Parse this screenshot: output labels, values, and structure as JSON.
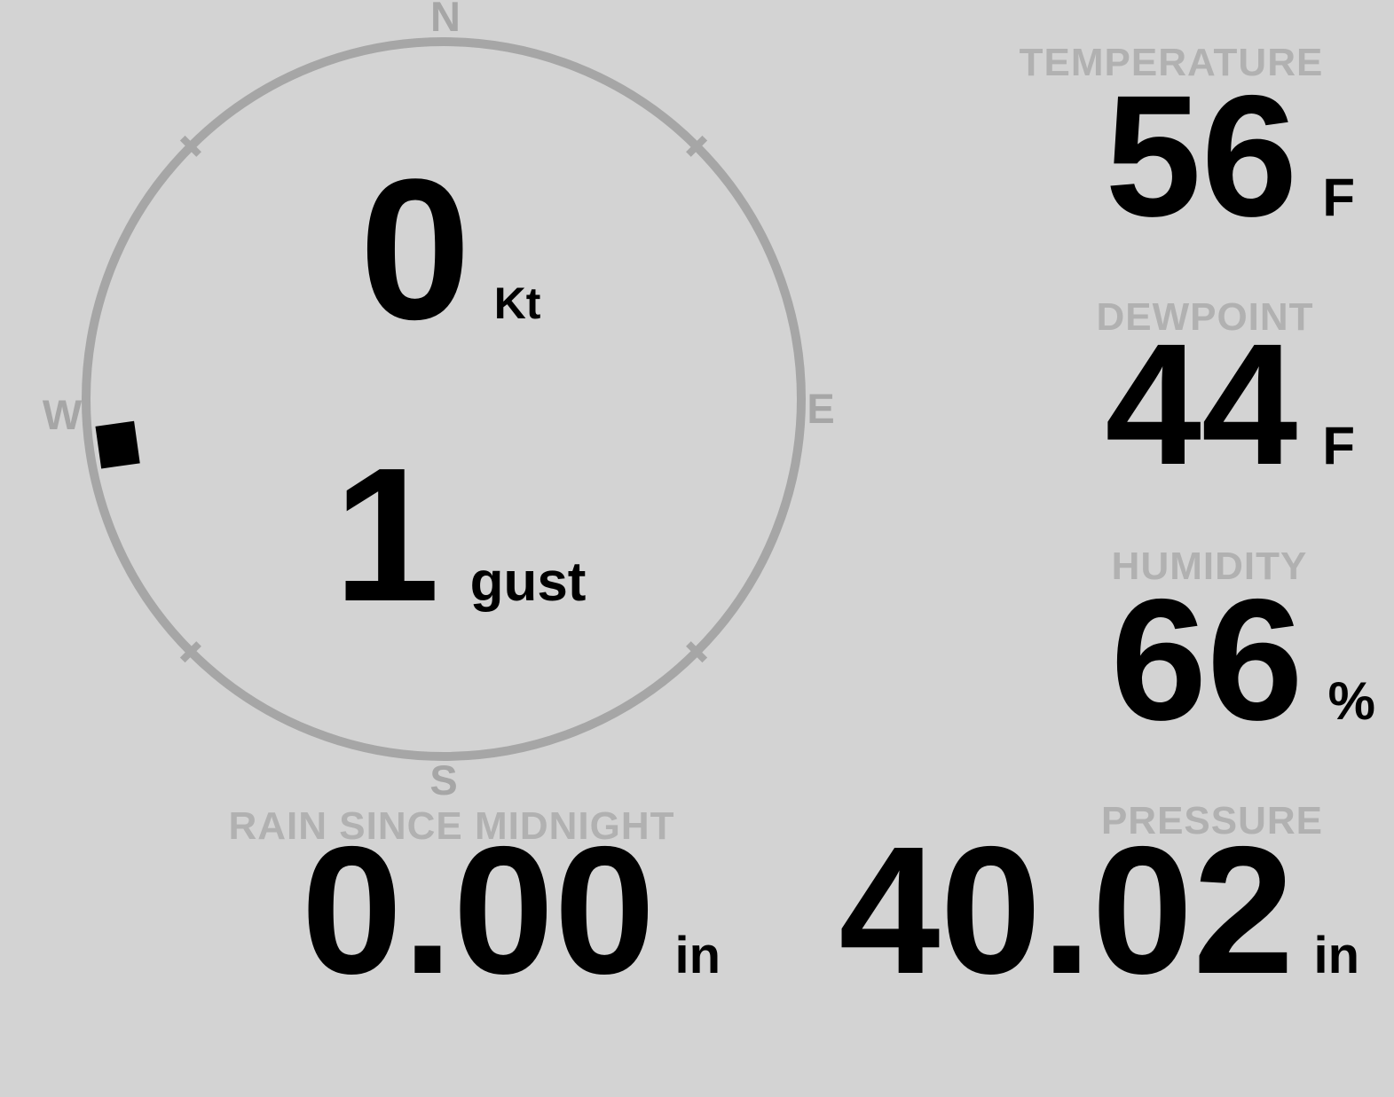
{
  "colors": {
    "background": "#d3d3d3",
    "label": "#b1b1b1",
    "compass": "#a6a6a6",
    "value": "#000000"
  },
  "compass": {
    "cardinals": {
      "north": "N",
      "east": "E",
      "south": "S",
      "west": "W"
    },
    "wind_speed": {
      "value": "0",
      "unit": "Kt"
    },
    "wind_gust": {
      "value": "1",
      "unit": "gust"
    },
    "wind_direction_deg": 262
  },
  "readings": {
    "temperature": {
      "label": "TEMPERATURE",
      "value": "56",
      "unit": "F"
    },
    "dewpoint": {
      "label": "DEWPOINT",
      "value": "44",
      "unit": "F"
    },
    "humidity": {
      "label": "HUMIDITY",
      "value": "66",
      "unit": "%"
    },
    "rain_since_midnight": {
      "label": "RAIN SINCE MIDNIGHT",
      "value": "0.00",
      "unit": "in"
    },
    "pressure": {
      "label": "PRESSURE",
      "value": "40.02",
      "unit": "in"
    }
  }
}
